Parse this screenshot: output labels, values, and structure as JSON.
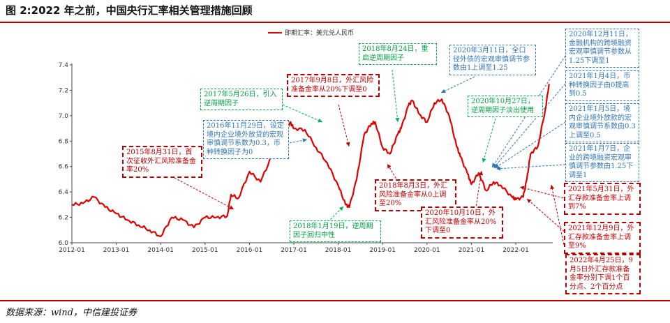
{
  "figure_title": "图 2:2022 年之前，中国央行汇率相关管理措施回顾",
  "source": "数据来源：wind，中信建投证券",
  "colors": {
    "line": "#e00000",
    "red": "#c00000",
    "blue": "#2e75b6",
    "green": "#00b050",
    "rule": "#c00000"
  },
  "chart_data": {
    "type": "line",
    "series": [
      {
        "name": "即期汇率：美元兑人民币",
        "x": [
          "2012-01",
          "2012-04",
          "2012-07",
          "2012-10",
          "2013-01",
          "2013-04",
          "2013-07",
          "2013-10",
          "2014-01",
          "2014-04",
          "2014-07",
          "2014-10",
          "2015-01",
          "2015-04",
          "2015-07",
          "2015-08",
          "2015-10",
          "2016-01",
          "2016-04",
          "2016-07",
          "2016-10",
          "2016-12",
          "2017-01",
          "2017-04",
          "2017-07",
          "2017-10",
          "2018-01",
          "2018-03",
          "2018-04",
          "2018-06",
          "2018-08",
          "2018-10",
          "2018-11",
          "2019-01",
          "2019-03",
          "2019-05",
          "2019-06",
          "2019-08",
          "2019-09",
          "2019-11",
          "2020-01",
          "2020-03",
          "2020-05",
          "2020-07",
          "2020-09",
          "2020-10",
          "2020-12",
          "2021-01",
          "2021-03",
          "2021-05",
          "2021-07",
          "2021-09",
          "2021-12",
          "2022-01",
          "2022-03",
          "2022-04",
          "2022-05",
          "2022-07",
          "2022-09",
          "2022-10"
        ],
        "y": [
          6.3,
          6.31,
          6.36,
          6.28,
          6.23,
          6.18,
          6.14,
          6.1,
          6.05,
          6.2,
          6.18,
          6.12,
          6.2,
          6.2,
          6.21,
          6.38,
          6.35,
          6.56,
          6.48,
          6.68,
          6.77,
          6.95,
          6.9,
          6.89,
          6.75,
          6.63,
          6.45,
          6.3,
          6.28,
          6.5,
          6.85,
          6.94,
          6.95,
          6.75,
          6.7,
          6.85,
          6.9,
          7.08,
          7.12,
          7.01,
          6.95,
          7.1,
          7.13,
          7.0,
          6.76,
          6.68,
          6.54,
          6.46,
          6.55,
          6.41,
          6.48,
          6.45,
          6.36,
          6.34,
          6.36,
          6.5,
          6.7,
          6.76,
          7.05,
          7.25
        ]
      }
    ],
    "x_ticks": [
      "2012-01",
      "2013-01",
      "2014-01",
      "2015-01",
      "2016-01",
      "2017-01",
      "2018-01",
      "2019-01",
      "2020-01",
      "2021-01",
      "2022-01"
    ],
    "y_ticks": [
      6.0,
      6.2,
      6.4,
      6.6,
      6.8,
      7.0,
      7.2,
      7.4
    ],
    "ylim": [
      6.0,
      7.4
    ],
    "xlim": [
      "2012-01",
      "2022-11"
    ],
    "grid": false,
    "legend": "top"
  },
  "annotations": [
    {
      "id": "a2015",
      "color": "red",
      "text": "2015年8月31日，首次征收外汇风险准备金率20%"
    },
    {
      "id": "a2016",
      "color": "blue",
      "text": "2016年11月29日，设定境内企业境外放贷的宏观审慎调节系数为0.3，币种转换因子为0"
    },
    {
      "id": "a2017may",
      "color": "green",
      "text": "2017年5月26日，引入逆周期因子"
    },
    {
      "id": "a2017sep",
      "color": "red",
      "text": "2017年9月8日，外汇风险准备金率从20%下调至0"
    },
    {
      "id": "a2018jan",
      "color": "green",
      "text": "2018年1月19日，逆周期因子回归中性"
    },
    {
      "id": "a2018aug24",
      "color": "green",
      "text": "2018年8月24日，重启逆周期因子"
    },
    {
      "id": "a2018aug3",
      "color": "red",
      "text": "2018年8月3日，外汇风险准备金率从0上调至20%"
    },
    {
      "id": "a2020mar",
      "color": "blue",
      "text": "2020年3月11日，全口径外债的宏观审慎调节参数由1上调至1.25"
    },
    {
      "id": "a2020oct27",
      "color": "green",
      "text": "2020年10月27日，逆周期因子淡出使用"
    },
    {
      "id": "a2020oct10",
      "color": "red",
      "text": "2020年10月10日，外汇风险准备金率从20%下调至0"
    },
    {
      "id": "a2020dec",
      "color": "blue",
      "text": "2020年12月11日，金融机构的跨境融资宏观审慎调节参数从1.25下调至1"
    },
    {
      "id": "a2021jan4",
      "color": "blue",
      "text": "2021年1月4日，币种转换因子由0提高到0.5"
    },
    {
      "id": "a2021jan5",
      "color": "blue",
      "text": "2021年1月5日，境内企业境外放款的宏观审慎调节系数由0.3上调至0.5"
    },
    {
      "id": "a2021jan7",
      "color": "blue",
      "text": "2021年1月7日，企业的跨境融资宏观审慎调节参数由1.25下调至1"
    },
    {
      "id": "a2021may",
      "color": "red",
      "text": "2021年5月31日，外汇存款准备金率上调到7%"
    },
    {
      "id": "a2021dec",
      "color": "red",
      "text": "2021年12月9日，外汇存款准备金率上调至9%"
    },
    {
      "id": "a2022apr",
      "color": "red",
      "text": "2022年4月25日，9月5日外汇存款准备金率分别下调1个百分点、2个百分点"
    }
  ]
}
